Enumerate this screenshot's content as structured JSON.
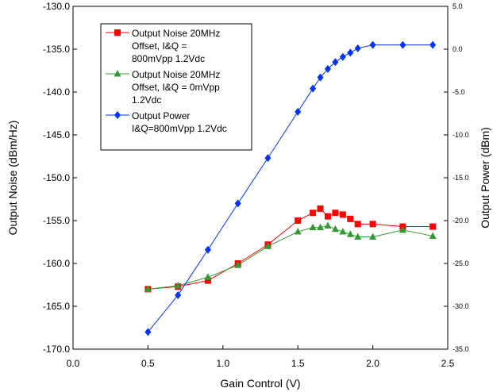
{
  "chart_data": {
    "type": "line",
    "title": "",
    "xlabel": "Gain Control (V)",
    "ylabel": "Output Noise (dBm/Hz)",
    "y2label": "Output Power (dBm)",
    "xlim": [
      0.0,
      2.5
    ],
    "ylim": [
      -170.0,
      -130.0
    ],
    "y2lim": [
      -35.0,
      5.0
    ],
    "x_ticks": [
      "0.0",
      "0.5",
      "1.0",
      "1.5",
      "2.0",
      "2.5"
    ],
    "y_ticks": [
      "-130.0",
      "-135.0",
      "-140.0",
      "-145.0",
      "-150.0",
      "-155.0",
      "-160.0",
      "-165.0",
      "-170.0"
    ],
    "y2_ticks": [
      "5.0",
      "0.0",
      "-5.0",
      "-10.0",
      "-15.0",
      "-20.0",
      "-25.0",
      "-30.0",
      "-35.0"
    ],
    "grid": false,
    "legend_position": "top-left",
    "series": [
      {
        "name": "Output Noise 20MHz Offset, I&Q = 800mVpp 1.2Vdc",
        "legend_lines": [
          "Output Noise 20MHz",
          "Offset,     I&Q =",
          "800mVpp 1.2Vdc"
        ],
        "axis": "left",
        "color": "#ff0000",
        "marker": "square",
        "x": [
          0.5,
          0.7,
          0.9,
          1.1,
          1.3,
          1.5,
          1.6,
          1.65,
          1.7,
          1.75,
          1.8,
          1.85,
          1.9,
          2.0,
          2.2,
          2.4
        ],
        "values": [
          -163.0,
          -162.7,
          -162.0,
          -160.0,
          -157.8,
          -155.0,
          -154.1,
          -153.6,
          -154.5,
          -154.1,
          -154.3,
          -154.8,
          -155.4,
          -155.4,
          -155.7,
          -155.7
        ]
      },
      {
        "name": "Output Noise 20MHz Offset, I&Q = 0mVpp 1.2Vdc",
        "legend_lines": [
          "Output Noise 20MHz",
          "Offset,     I&Q = 0mVpp",
          "1.2Vdc"
        ],
        "axis": "left",
        "color": "#339933",
        "marker": "triangle",
        "x": [
          0.5,
          0.7,
          0.9,
          1.1,
          1.3,
          1.5,
          1.6,
          1.65,
          1.7,
          1.75,
          1.8,
          1.85,
          1.9,
          2.0,
          2.2,
          2.4
        ],
        "values": [
          -163.0,
          -162.6,
          -161.6,
          -160.2,
          -158.0,
          -156.3,
          -155.8,
          -155.8,
          -155.6,
          -156.0,
          -156.3,
          -156.6,
          -156.9,
          -156.9,
          -156.1,
          -156.8
        ]
      },
      {
        "name": "Output Power I&Q=800mVpp 1.2Vdc",
        "legend_lines": [
          "Output Power",
          "I&Q=800mVpp 1.2Vdc"
        ],
        "axis": "right",
        "color": "#0033ff",
        "marker": "diamond",
        "x": [
          0.5,
          0.7,
          0.9,
          1.1,
          1.3,
          1.5,
          1.6,
          1.65,
          1.7,
          1.75,
          1.8,
          1.85,
          1.9,
          2.0,
          2.2,
          2.4
        ],
        "values": [
          -33.0,
          -28.7,
          -23.4,
          -18.0,
          -12.7,
          -7.3,
          -4.6,
          -3.3,
          -2.3,
          -1.5,
          -0.9,
          -0.4,
          0.1,
          0.5,
          0.5,
          0.5
        ]
      }
    ]
  }
}
